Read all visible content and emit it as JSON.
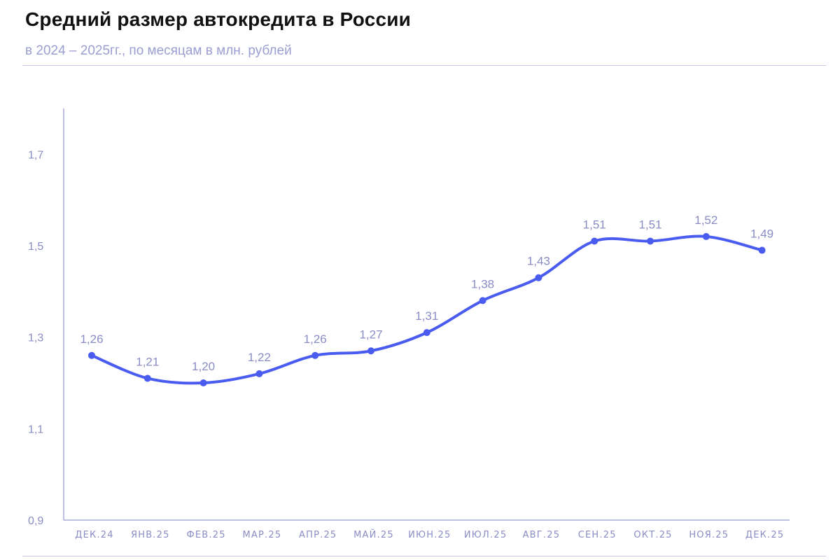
{
  "chart_data": {
    "type": "line",
    "title": "Средний размер автокредита в России",
    "subtitle": "в 2024 – 2025гг., по месяцам в млн. рублей",
    "categories": [
      "ДЕК.24",
      "ЯНВ.25",
      "ФЕВ.25",
      "МАР.25",
      "АПР.25",
      "МАЙ.25",
      "ИЮН.25",
      "ИЮЛ.25",
      "АВГ.25",
      "СЕН.25",
      "ОКТ.25",
      "НОЯ.25",
      "ДЕК.25"
    ],
    "series": [
      {
        "values": [
          1.26,
          1.21,
          1.2,
          1.22,
          1.26,
          1.27,
          1.31,
          1.38,
          1.43,
          1.51,
          1.51,
          1.52,
          1.49
        ],
        "labels": [
          "1,26",
          "1,21",
          "1,20",
          "1,22",
          "1,26",
          "1,27",
          "1,31",
          "1,38",
          "1,43",
          "1,51",
          "1,51",
          "1,52",
          "1,49"
        ]
      }
    ],
    "yticks": [
      "0,9",
      "1,1",
      "1,3",
      "1,5",
      "1,7"
    ],
    "ytick_values": [
      0.9,
      1.1,
      1.3,
      1.5,
      1.7
    ],
    "ylim": [
      0.9,
      1.8
    ],
    "xlabel": "",
    "ylabel": "",
    "grid": false,
    "colors": {
      "line": "#4a5cf0",
      "axis": "#a9abdb",
      "text": "#8a8cc4"
    }
  }
}
